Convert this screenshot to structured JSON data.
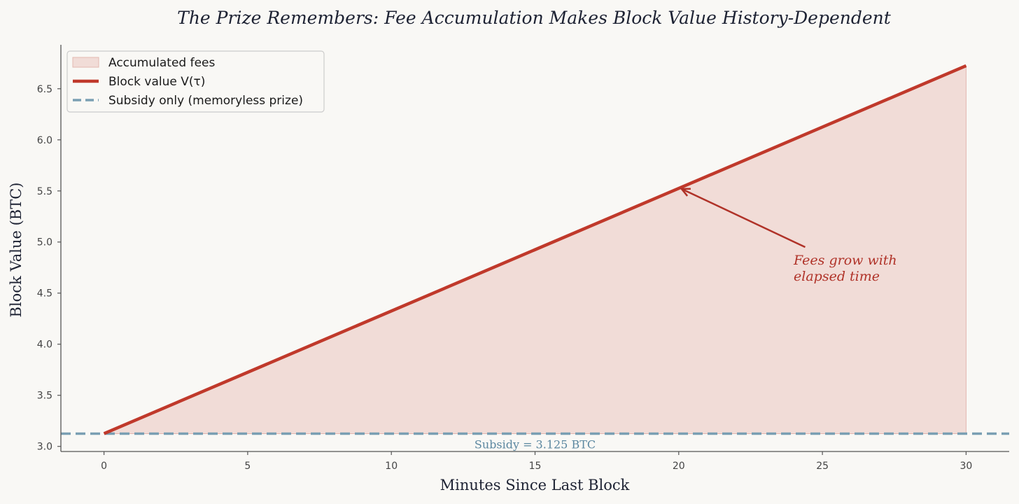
{
  "chart_data": {
    "type": "line",
    "title": "The Prize Remembers: Fee Accumulation Makes Block Value History-Dependent",
    "xlabel": "Minutes Since Last Block",
    "ylabel": "Block Value (BTC)",
    "xlim": [
      -1.5,
      31.5
    ],
    "ylim": [
      2.95,
      6.93
    ],
    "xticks": [
      0,
      5,
      10,
      15,
      20,
      25,
      30
    ],
    "xtick_labels": [
      "0",
      "5",
      "10",
      "15",
      "20",
      "25",
      "30"
    ],
    "yticks": [
      3.0,
      3.5,
      4.0,
      4.5,
      5.0,
      5.5,
      6.0,
      6.5
    ],
    "ytick_labels": [
      "3.0",
      "3.5",
      "4.0",
      "4.5",
      "5.0",
      "5.5",
      "6.0",
      "6.5"
    ],
    "grid": false,
    "legend_position": "top-left",
    "series": [
      {
        "name": "Block value V(τ)",
        "kind": "line",
        "x": [
          0,
          30
        ],
        "y": [
          3.125,
          6.725
        ],
        "color": "#c0392b"
      },
      {
        "name": "Subsidy only (memoryless prize)",
        "kind": "hline",
        "y": 3.125,
        "color": "#7a9fb3"
      },
      {
        "name": "Accumulated fees",
        "kind": "area",
        "x": [
          0,
          30
        ],
        "y_lower": [
          3.125,
          3.125
        ],
        "y_upper": [
          3.125,
          6.725
        ],
        "color": "#f1dcd7"
      }
    ],
    "annotations": [
      {
        "text_lines": [
          "Fees grow with",
          "elapsed time"
        ],
        "arrow_to": [
          20.1,
          5.52
        ],
        "arrow_from": [
          24.4,
          4.95
        ],
        "text_at": [
          24.0,
          4.78
        ],
        "color": "#b03228"
      },
      {
        "text": "Subsidy = 3.125 BTC",
        "x": 15,
        "y": 3.0,
        "color": "#5b87a0"
      }
    ],
    "colors": {
      "background": "#f9f8f5",
      "line": "#c0392b",
      "fill": "#f1dcd7",
      "fill_edge": "#e2b7b0",
      "subsidy": "#7a9fb3",
      "annotation": "#b03228",
      "subsidy_label": "#5b87a0",
      "axis": "#555555"
    }
  }
}
